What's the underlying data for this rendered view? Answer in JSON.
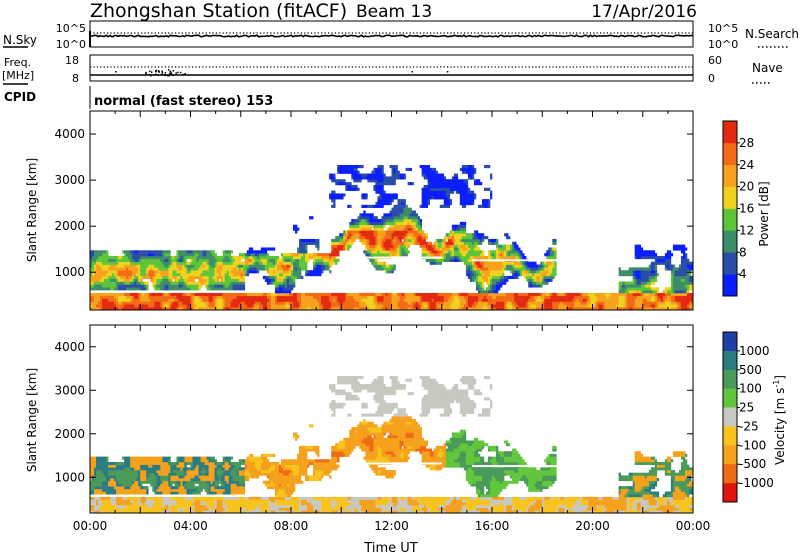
{
  "header": {
    "station": "Zhongshan Station (fitACF)",
    "beam": "Beam 13",
    "date": "17/Apr/2016"
  },
  "noise_panel": {
    "left_label": "N.Sky",
    "right_label": "N.Search",
    "left_ticks": [
      "10^5",
      "10^0"
    ],
    "right_ticks": [
      "10^5",
      "10^0"
    ]
  },
  "freq_panel": {
    "left_label_line1": "Freq.",
    "left_label_line2": "[MHz]",
    "right_label": "Nave",
    "left_ticks": [
      "18",
      "8"
    ],
    "right_ticks": [
      "60",
      "0"
    ]
  },
  "cpid": {
    "label": "CPID",
    "text": "normal (fast stereo) 153"
  },
  "chart_data": [
    {
      "type": "heatmap",
      "name": "Power",
      "ylabel": "Slant Range [km]",
      "yticks": [
        1000,
        2000,
        3000,
        4000
      ],
      "ylim": [
        180,
        4500
      ],
      "xlim": [
        0,
        24
      ],
      "colorbar": {
        "label": "Power [dB]",
        "ticks": [
          "4",
          "8",
          "12",
          "16",
          "20",
          "24",
          "28"
        ],
        "colors": [
          "#0a1eff",
          "#2a4ea8",
          "#3d8c6a",
          "#5cc53a",
          "#f0d21e",
          "#f7a21c",
          "#f36b14",
          "#e32a10"
        ]
      }
    },
    {
      "type": "heatmap",
      "name": "Velocity",
      "ylabel": "Slant Range [km]",
      "xlabel": "Time UT",
      "yticks": [
        1000,
        2000,
        3000,
        4000
      ],
      "ylim": [
        180,
        4500
      ],
      "xlim": [
        0,
        24
      ],
      "xtick_labels": [
        "00:00",
        "04:00",
        "08:00",
        "12:00",
        "16:00",
        "20:00",
        "00:00"
      ],
      "colorbar": {
        "label_main": "Velocity [m s",
        "label_sup": "-1",
        "label_end": "]",
        "ticks": [
          "1000",
          "500",
          "100",
          "25",
          "-25",
          "-100",
          "-500",
          "-1000"
        ],
        "colors": [
          "#1f3fa6",
          "#2a7b82",
          "#4a9a5a",
          "#62c63c",
          "#c8c8c0",
          "#f7c31c",
          "#f5a11c",
          "#f06a14",
          "#e0140f"
        ]
      }
    }
  ]
}
